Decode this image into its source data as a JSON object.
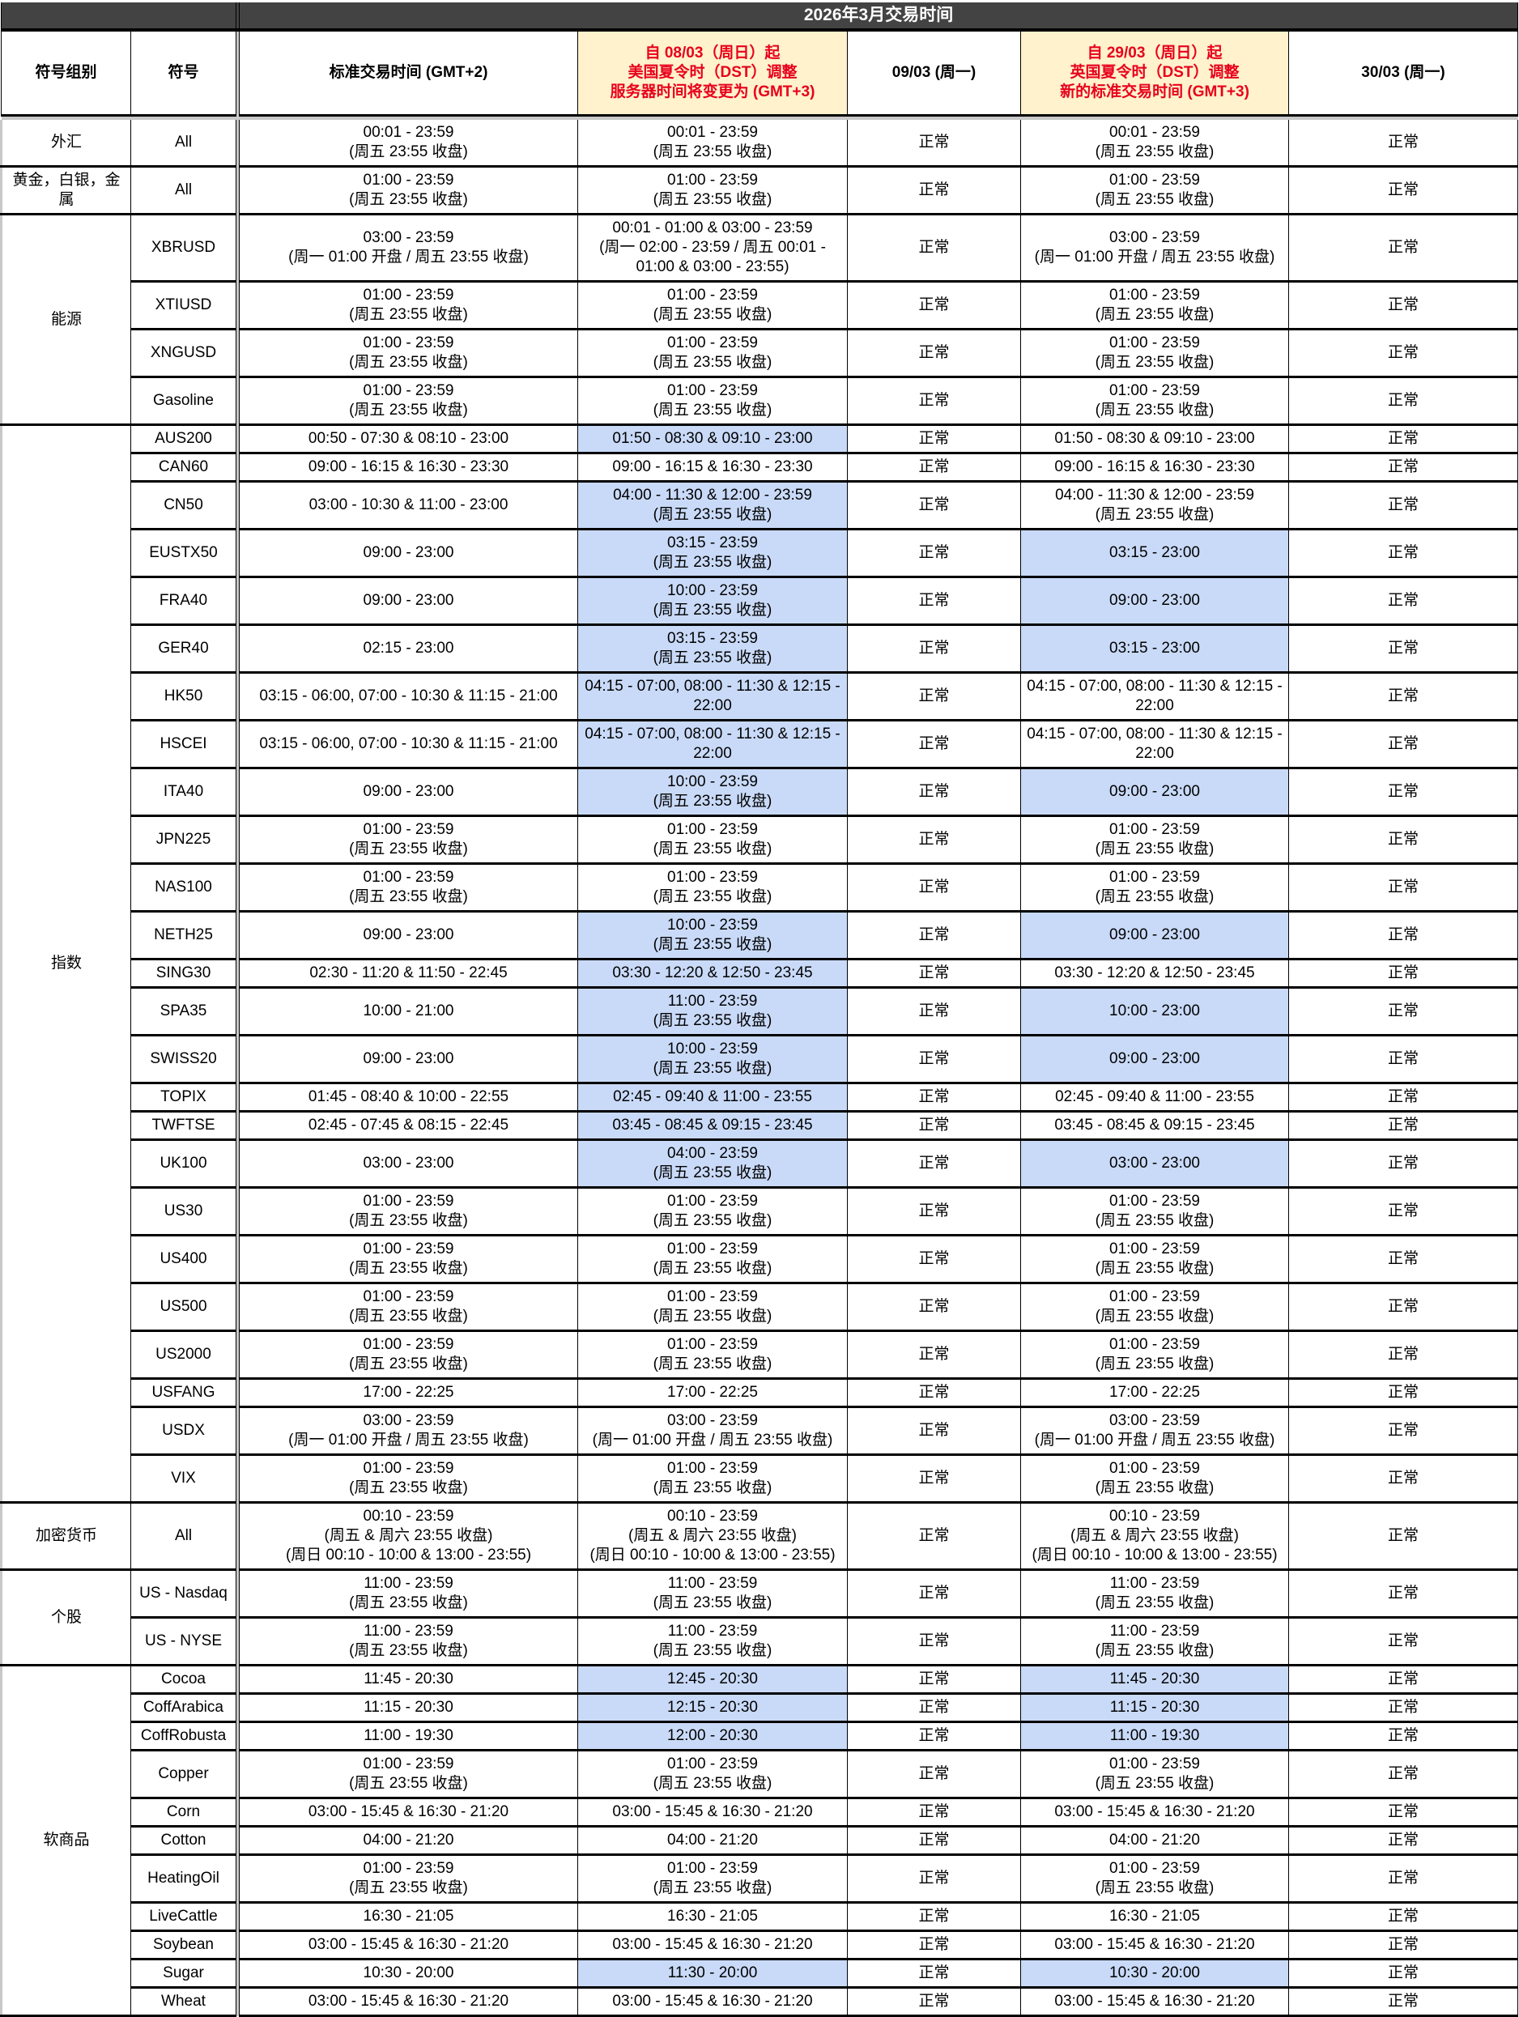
{
  "header": {
    "title": "2026年3月交易时间",
    "columns": [
      "符号组别",
      "符号",
      "标准交易时间 (GMT+2)",
      "自 08/03（周日）起\n美国夏令时（DST）调整\n服务器时间将变更为 (GMT+3)",
      "09/03 (周一)",
      "自 29/03（周日）起\n英国夏令时（DST）调整\n新的标准交易时间 (GMT+3)",
      "30/03 (周一)"
    ]
  },
  "colors": {
    "title_bg": "#434343",
    "dst_header_bg": "#fff2cc",
    "dst_header_text": "#e8001c",
    "changed_cell_bg": "#c9daf8"
  },
  "groups": [
    {
      "name": "外汇",
      "rows": [
        {
          "symbol": "All",
          "standard": "00:01 - 23:59\n(周五 23:55 收盘)",
          "us_dst": "00:01 - 23:59\n(周五 23:55 收盘)",
          "mar09": "正常",
          "uk_dst": "00:01 - 23:59\n(周五 23:55 收盘)",
          "mar30": "正常",
          "us_hl": false,
          "uk_hl": false
        }
      ]
    },
    {
      "name": "黄金，白银，金属",
      "rows": [
        {
          "symbol": "All",
          "standard": "01:00 - 23:59\n(周五 23:55 收盘)",
          "us_dst": "01:00 - 23:59\n(周五 23:55 收盘)",
          "mar09": "正常",
          "uk_dst": "01:00 - 23:59\n(周五 23:55 收盘)",
          "mar30": "正常",
          "us_hl": false,
          "uk_hl": false
        }
      ]
    },
    {
      "name": "能源",
      "rows": [
        {
          "symbol": "XBRUSD",
          "standard": "03:00 - 23:59\n(周一  01:00 开盘 / 周五 23:55 收盘)",
          "us_dst": "00:01 - 01:00 & 03:00 - 23:59\n(周一  02:00 - 23:59 / 周五 00:01 - 01:00 & 03:00 - 23:55)",
          "mar09": "正常",
          "uk_dst": "03:00 - 23:59\n(周一  01:00 开盘 / 周五 23:55 收盘)",
          "mar30": "正常",
          "us_hl": false,
          "uk_hl": false
        },
        {
          "symbol": "XTIUSD",
          "standard": "01:00 - 23:59\n(周五 23:55 收盘)",
          "us_dst": "01:00 - 23:59\n(周五 23:55 收盘)",
          "mar09": "正常",
          "uk_dst": "01:00 - 23:59\n(周五 23:55 收盘)",
          "mar30": "正常",
          "us_hl": false,
          "uk_hl": false
        },
        {
          "symbol": "XNGUSD",
          "standard": "01:00 - 23:59\n(周五 23:55 收盘)",
          "us_dst": "01:00 - 23:59\n(周五 23:55 收盘)",
          "mar09": "正常",
          "uk_dst": "01:00 - 23:59\n(周五 23:55 收盘)",
          "mar30": "正常",
          "us_hl": false,
          "uk_hl": false
        },
        {
          "symbol": "Gasoline",
          "standard": "01:00 - 23:59\n(周五 23:55 收盘)",
          "us_dst": "01:00 - 23:59\n(周五 23:55 收盘)",
          "mar09": "正常",
          "uk_dst": "01:00 - 23:59\n(周五 23:55 收盘)",
          "mar30": "正常",
          "us_hl": false,
          "uk_hl": false
        }
      ]
    },
    {
      "name": "指数",
      "rows": [
        {
          "symbol": "AUS200",
          "standard": "00:50 - 07:30 & 08:10 - 23:00",
          "us_dst": "01:50 - 08:30 & 09:10 - 23:00",
          "mar09": "正常",
          "uk_dst": "01:50 - 08:30 & 09:10 - 23:00",
          "mar30": "正常",
          "us_hl": true,
          "uk_hl": false
        },
        {
          "symbol": "CAN60",
          "standard": "09:00 - 16:15 & 16:30 - 23:30",
          "us_dst": "09:00 - 16:15 & 16:30 - 23:30",
          "mar09": "正常",
          "uk_dst": "09:00 - 16:15 & 16:30 - 23:30",
          "mar30": "正常",
          "us_hl": false,
          "uk_hl": false
        },
        {
          "symbol": "CN50",
          "standard": "03:00 - 10:30 & 11:00 - 23:00",
          "us_dst": "04:00 - 11:30 & 12:00 - 23:59\n(周五 23:55 收盘)",
          "mar09": "正常",
          "uk_dst": "04:00 - 11:30 & 12:00 - 23:59\n(周五 23:55 收盘)",
          "mar30": "正常",
          "us_hl": true,
          "uk_hl": false
        },
        {
          "symbol": "EUSTX50",
          "standard": "09:00 - 23:00",
          "us_dst": "03:15 - 23:59\n(周五 23:55 收盘)",
          "mar09": "正常",
          "uk_dst": "03:15 - 23:00",
          "mar30": "正常",
          "us_hl": true,
          "uk_hl": true
        },
        {
          "symbol": "FRA40",
          "standard": "09:00 - 23:00",
          "us_dst": "10:00 - 23:59\n(周五 23:55 收盘)",
          "mar09": "正常",
          "uk_dst": "09:00 - 23:00",
          "mar30": "正常",
          "us_hl": true,
          "uk_hl": true
        },
        {
          "symbol": "GER40",
          "standard": "02:15 - 23:00",
          "us_dst": "03:15 - 23:59\n(周五 23:55 收盘)",
          "mar09": "正常",
          "uk_dst": "03:15 - 23:00",
          "mar30": "正常",
          "us_hl": true,
          "uk_hl": true
        },
        {
          "symbol": "HK50",
          "standard": "03:15 - 06:00, 07:00 - 10:30 & 11:15 - 21:00",
          "us_dst": "04:15 - 07:00, 08:00 - 11:30 & 12:15 - 22:00",
          "mar09": "正常",
          "uk_dst": "04:15 - 07:00, 08:00 - 11:30 & 12:15 - 22:00",
          "mar30": "正常",
          "us_hl": true,
          "uk_hl": false
        },
        {
          "symbol": "HSCEI",
          "standard": "03:15 - 06:00, 07:00 - 10:30 & 11:15 - 21:00",
          "us_dst": "04:15 - 07:00, 08:00 - 11:30 & 12:15 - 22:00",
          "mar09": "正常",
          "uk_dst": "04:15 - 07:00, 08:00 - 11:30 & 12:15 - 22:00",
          "mar30": "正常",
          "us_hl": true,
          "uk_hl": false
        },
        {
          "symbol": "ITA40",
          "standard": "09:00 - 23:00",
          "us_dst": "10:00 - 23:59\n(周五 23:55 收盘)",
          "mar09": "正常",
          "uk_dst": "09:00 - 23:00",
          "mar30": "正常",
          "us_hl": true,
          "uk_hl": true
        },
        {
          "symbol": "JPN225",
          "standard": "01:00 - 23:59\n(周五 23:55 收盘)",
          "us_dst": "01:00 - 23:59\n(周五 23:55 收盘)",
          "mar09": "正常",
          "uk_dst": "01:00 - 23:59\n(周五 23:55 收盘)",
          "mar30": "正常",
          "us_hl": false,
          "uk_hl": false
        },
        {
          "symbol": "NAS100",
          "standard": "01:00 - 23:59\n(周五 23:55 收盘)",
          "us_dst": "01:00 - 23:59\n(周五 23:55 收盘)",
          "mar09": "正常",
          "uk_dst": "01:00 - 23:59\n(周五 23:55 收盘)",
          "mar30": "正常",
          "us_hl": false,
          "uk_hl": false
        },
        {
          "symbol": "NETH25",
          "standard": "09:00 - 23:00",
          "us_dst": "10:00 - 23:59\n(周五 23:55 收盘)",
          "mar09": "正常",
          "uk_dst": "09:00 - 23:00",
          "mar30": "正常",
          "us_hl": true,
          "uk_hl": true
        },
        {
          "symbol": "SING30",
          "standard": "02:30 - 11:20 & 11:50 - 22:45",
          "us_dst": "03:30 - 12:20 & 12:50 - 23:45",
          "mar09": "正常",
          "uk_dst": "03:30 - 12:20 & 12:50 - 23:45",
          "mar30": "正常",
          "us_hl": true,
          "uk_hl": false
        },
        {
          "symbol": "SPA35",
          "standard": "10:00 - 21:00",
          "us_dst": "11:00 - 23:59\n(周五 23:55 收盘)",
          "mar09": "正常",
          "uk_dst": "10:00 - 23:00",
          "mar30": "正常",
          "us_hl": true,
          "uk_hl": true
        },
        {
          "symbol": "SWISS20",
          "standard": "09:00 - 23:00",
          "us_dst": "10:00 - 23:59\n(周五 23:55 收盘)",
          "mar09": "正常",
          "uk_dst": "09:00 - 23:00",
          "mar30": "正常",
          "us_hl": true,
          "uk_hl": true
        },
        {
          "symbol": "TOPIX",
          "standard": "01:45 - 08:40 & 10:00 - 22:55",
          "us_dst": "02:45 - 09:40 & 11:00 - 23:55",
          "mar09": "正常",
          "uk_dst": "02:45 - 09:40 & 11:00 - 23:55",
          "mar30": "正常",
          "us_hl": true,
          "uk_hl": false
        },
        {
          "symbol": "TWFTSE",
          "standard": "02:45 - 07:45 & 08:15 - 22:45",
          "us_dst": "03:45 - 08:45 & 09:15 - 23:45",
          "mar09": "正常",
          "uk_dst": "03:45 - 08:45 & 09:15 - 23:45",
          "mar30": "正常",
          "us_hl": true,
          "uk_hl": false
        },
        {
          "symbol": "UK100",
          "standard": "03:00 - 23:00",
          "us_dst": "04:00 - 23:59\n(周五 23:55 收盘)",
          "mar09": "正常",
          "uk_dst": "03:00 - 23:00",
          "mar30": "正常",
          "us_hl": true,
          "uk_hl": true
        },
        {
          "symbol": "US30",
          "standard": "01:00 - 23:59\n(周五 23:55 收盘)",
          "us_dst": "01:00 - 23:59\n(周五 23:55 收盘)",
          "mar09": "正常",
          "uk_dst": "01:00 - 23:59\n(周五 23:55 收盘)",
          "mar30": "正常",
          "us_hl": false,
          "uk_hl": false
        },
        {
          "symbol": "US400",
          "standard": "01:00 - 23:59\n(周五 23:55 收盘)",
          "us_dst": "01:00 - 23:59\n(周五 23:55 收盘)",
          "mar09": "正常",
          "uk_dst": "01:00 - 23:59\n(周五 23:55 收盘)",
          "mar30": "正常",
          "us_hl": false,
          "uk_hl": false
        },
        {
          "symbol": "US500",
          "standard": "01:00 - 23:59\n(周五 23:55 收盘)",
          "us_dst": "01:00 - 23:59\n(周五 23:55 收盘)",
          "mar09": "正常",
          "uk_dst": "01:00 - 23:59\n(周五 23:55 收盘)",
          "mar30": "正常",
          "us_hl": false,
          "uk_hl": false
        },
        {
          "symbol": "US2000",
          "standard": "01:00 - 23:59\n(周五 23:55 收盘)",
          "us_dst": "01:00 - 23:59\n(周五 23:55 收盘)",
          "mar09": "正常",
          "uk_dst": "01:00 - 23:59\n(周五 23:55 收盘)",
          "mar30": "正常",
          "us_hl": false,
          "uk_hl": false
        },
        {
          "symbol": "USFANG",
          "standard": "17:00 - 22:25",
          "us_dst": "17:00 - 22:25",
          "mar09": "正常",
          "uk_dst": "17:00 - 22:25",
          "mar30": "正常",
          "us_hl": false,
          "uk_hl": false
        },
        {
          "symbol": "USDX",
          "standard": "03:00 - 23:59\n(周一  01:00 开盘 / 周五 23:55 收盘)",
          "us_dst": "03:00 - 23:59\n(周一  01:00 开盘 / 周五 23:55 收盘)",
          "mar09": "正常",
          "uk_dst": "03:00 - 23:59\n(周一  01:00 开盘 / 周五 23:55 收盘)",
          "mar30": "正常",
          "us_hl": false,
          "uk_hl": false
        },
        {
          "symbol": "VIX",
          "standard": "01:00 - 23:59\n(周五 23:55 收盘)",
          "us_dst": "01:00 - 23:59\n(周五 23:55 收盘)",
          "mar09": "正常",
          "uk_dst": "01:00 - 23:59\n(周五 23:55 收盘)",
          "mar30": "正常",
          "us_hl": false,
          "uk_hl": false
        }
      ]
    },
    {
      "name": "加密货币",
      "rows": [
        {
          "symbol": "All",
          "standard": "00:10 - 23:59\n(周五 & 周六 23:55 收盘)\n(周日 00:10 - 10:00 & 13:00 - 23:55)",
          "us_dst": "00:10 - 23:59\n(周五 & 周六 23:55 收盘)\n(周日 00:10 - 10:00 & 13:00 - 23:55)",
          "mar09": "正常",
          "uk_dst": "00:10 - 23:59\n(周五 & 周六 23:55 收盘)\n(周日 00:10 - 10:00 & 13:00 - 23:55)",
          "mar30": "正常",
          "us_hl": false,
          "uk_hl": false
        }
      ]
    },
    {
      "name": "个股",
      "rows": [
        {
          "symbol": "US - Nasdaq",
          "standard": "11:00 - 23:59\n(周五 23:55 收盘)",
          "us_dst": "11:00 - 23:59\n(周五 23:55 收盘)",
          "mar09": "正常",
          "uk_dst": "11:00 - 23:59\n(周五 23:55 收盘)",
          "mar30": "正常",
          "us_hl": false,
          "uk_hl": false
        },
        {
          "symbol": "US - NYSE",
          "standard": "11:00 - 23:59\n(周五 23:55 收盘)",
          "us_dst": "11:00 - 23:59\n(周五 23:55 收盘)",
          "mar09": "正常",
          "uk_dst": "11:00 - 23:59\n(周五 23:55 收盘)",
          "mar30": "正常",
          "us_hl": false,
          "uk_hl": false
        }
      ]
    },
    {
      "name": "软商品",
      "rows": [
        {
          "symbol": "Cocoa",
          "standard": "11:45 - 20:30",
          "us_dst": "12:45 - 20:30",
          "mar09": "正常",
          "uk_dst": "11:45 - 20:30",
          "mar30": "正常",
          "us_hl": true,
          "uk_hl": true
        },
        {
          "symbol": "CoffArabica",
          "standard": "11:15 - 20:30",
          "us_dst": "12:15 - 20:30",
          "mar09": "正常",
          "uk_dst": "11:15 - 20:30",
          "mar30": "正常",
          "us_hl": true,
          "uk_hl": true
        },
        {
          "symbol": "CoffRobusta",
          "standard": "11:00 - 19:30",
          "us_dst": "12:00 - 20:30",
          "mar09": "正常",
          "uk_dst": "11:00 - 19:30",
          "mar30": "正常",
          "us_hl": true,
          "uk_hl": true
        },
        {
          "symbol": "Copper",
          "standard": "01:00 - 23:59\n(周五 23:55 收盘)",
          "us_dst": "01:00 - 23:59\n(周五 23:55 收盘)",
          "mar09": "正常",
          "uk_dst": "01:00 - 23:59\n(周五 23:55 收盘)",
          "mar30": "正常",
          "us_hl": false,
          "uk_hl": false
        },
        {
          "symbol": "Corn",
          "standard": "03:00 - 15:45 & 16:30 - 21:20",
          "us_dst": "03:00 - 15:45 & 16:30 - 21:20",
          "mar09": "正常",
          "uk_dst": "03:00 - 15:45 & 16:30 - 21:20",
          "mar30": "正常",
          "us_hl": false,
          "uk_hl": false
        },
        {
          "symbol": "Cotton",
          "standard": "04:00 - 21:20",
          "us_dst": "04:00 - 21:20",
          "mar09": "正常",
          "uk_dst": "04:00 - 21:20",
          "mar30": "正常",
          "us_hl": false,
          "uk_hl": false
        },
        {
          "symbol": "HeatingOil",
          "standard": "01:00 - 23:59\n(周五 23:55 收盘)",
          "us_dst": "01:00 - 23:59\n(周五 23:55 收盘)",
          "mar09": "正常",
          "uk_dst": "01:00 - 23:59\n(周五 23:55 收盘)",
          "mar30": "正常",
          "us_hl": false,
          "uk_hl": false
        },
        {
          "symbol": "LiveCattle",
          "standard": "16:30 - 21:05",
          "us_dst": "16:30 - 21:05",
          "mar09": "正常",
          "uk_dst": "16:30 - 21:05",
          "mar30": "正常",
          "us_hl": false,
          "uk_hl": false
        },
        {
          "symbol": "Soybean",
          "standard": "03:00 - 15:45 & 16:30 - 21:20",
          "us_dst": "03:00 - 15:45 & 16:30 - 21:20",
          "mar09": "正常",
          "uk_dst": "03:00 - 15:45 & 16:30 - 21:20",
          "mar30": "正常",
          "us_hl": false,
          "uk_hl": false
        },
        {
          "symbol": "Sugar",
          "standard": "10:30 - 20:00",
          "us_dst": "11:30 - 20:00",
          "mar09": "正常",
          "uk_dst": "10:30 - 20:00",
          "mar30": "正常",
          "us_hl": true,
          "uk_hl": true
        },
        {
          "symbol": "Wheat",
          "standard": "03:00 - 15:45 & 16:30 - 21:20",
          "us_dst": "03:00 - 15:45 & 16:30 - 21:20",
          "mar09": "正常",
          "uk_dst": "03:00 - 15:45 & 16:30 - 21:20",
          "mar30": "正常",
          "us_hl": false,
          "uk_hl": false
        }
      ]
    }
  ]
}
